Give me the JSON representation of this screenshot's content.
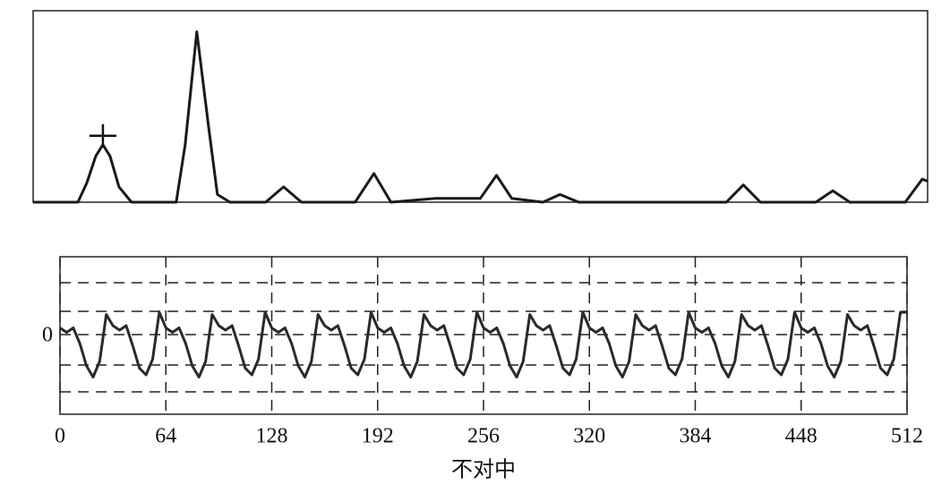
{
  "chart_data": [
    {
      "type": "line",
      "color": "#1a1a1a",
      "xlim": [
        0,
        100
      ],
      "ylim": [
        0,
        100
      ],
      "marker_point": 4,
      "x": [
        0,
        5,
        6,
        7,
        7.8,
        8.6,
        9.6,
        11,
        16,
        17,
        18.3,
        19.6,
        20.6,
        22,
        26,
        28,
        30,
        36,
        38.1,
        40,
        45,
        50,
        51.8,
        53.5,
        57,
        58.9,
        61,
        70,
        77.5,
        79.4,
        81.3,
        87.5,
        89.4,
        91.3,
        97.5,
        99.4,
        100
      ],
      "values": [
        0,
        0,
        10,
        24,
        30,
        24,
        8,
        0,
        0,
        30,
        89,
        40,
        4,
        0,
        0,
        8,
        0,
        0,
        15,
        0,
        2,
        2,
        14,
        2,
        0,
        4,
        0,
        0,
        0,
        9,
        0,
        0,
        6,
        0,
        0,
        12,
        11
      ]
    },
    {
      "type": "line",
      "color": "#2a2a2a",
      "x_label": "不对中",
      "xlim": [
        0,
        512
      ],
      "xticks": [
        0,
        64,
        128,
        192,
        256,
        320,
        384,
        448,
        512
      ],
      "ylim": [
        -1.78,
        1.74
      ],
      "yticks": [
        0
      ],
      "ygrid": [
        1.16,
        0.52,
        0,
        -0.68,
        -1.28
      ],
      "grid": true,
      "x": [
        0,
        4,
        8,
        12,
        16,
        20,
        24,
        28,
        32,
        36,
        40,
        44,
        48,
        52,
        56,
        60,
        64,
        68,
        72,
        76,
        80,
        84,
        88,
        92,
        96,
        100,
        104,
        108,
        112,
        116,
        120,
        124,
        128,
        132,
        136,
        140,
        144,
        148,
        152,
        156,
        160,
        164,
        168,
        172,
        176,
        180,
        184,
        188,
        192,
        196,
        200,
        204,
        208,
        212,
        216,
        220,
        224,
        228,
        232,
        236,
        240,
        244,
        248,
        252,
        256,
        260,
        264,
        268,
        272,
        276,
        280,
        284,
        288,
        292,
        296,
        300,
        304,
        308,
        312,
        316,
        320,
        324,
        328,
        332,
        336,
        340,
        344,
        348,
        352,
        356,
        360,
        364,
        368,
        372,
        376,
        380,
        384,
        388,
        392,
        396,
        400,
        404,
        408,
        412,
        416,
        420,
        424,
        428,
        432,
        436,
        440,
        444,
        448,
        452,
        456,
        460,
        464,
        468,
        472,
        476,
        480,
        484,
        488,
        492,
        496,
        500,
        504,
        508,
        512
      ],
      "values": [
        0.15,
        0.05,
        0.15,
        -0.2,
        -0.7,
        -0.95,
        -0.6,
        0.45,
        0.2,
        0.1,
        0.2,
        -0.25,
        -0.75,
        -0.9,
        -0.55,
        0.5,
        0.15,
        0.05,
        0.15,
        -0.2,
        -0.7,
        -0.95,
        -0.6,
        0.45,
        0.2,
        0.1,
        0.2,
        -0.25,
        -0.75,
        -0.9,
        -0.55,
        0.5,
        0.15,
        0.05,
        0.15,
        -0.2,
        -0.7,
        -0.95,
        -0.6,
        0.45,
        0.2,
        0.1,
        0.2,
        -0.25,
        -0.75,
        -0.9,
        -0.55,
        0.5,
        0.15,
        0.05,
        0.15,
        -0.2,
        -0.7,
        -0.95,
        -0.6,
        0.45,
        0.2,
        0.1,
        0.2,
        -0.25,
        -0.75,
        -0.9,
        -0.55,
        0.5,
        0.15,
        0.05,
        0.15,
        -0.2,
        -0.7,
        -0.95,
        -0.6,
        0.45,
        0.2,
        0.1,
        0.2,
        -0.25,
        -0.75,
        -0.9,
        -0.55,
        0.5,
        0.15,
        0.05,
        0.15,
        -0.2,
        -0.7,
        -0.95,
        -0.6,
        0.45,
        0.2,
        0.1,
        0.2,
        -0.25,
        -0.75,
        -0.9,
        -0.55,
        0.5,
        0.15,
        0.05,
        0.15,
        -0.2,
        -0.7,
        -0.95,
        -0.6,
        0.45,
        0.2,
        0.1,
        0.2,
        -0.25,
        -0.75,
        -0.9,
        -0.55,
        0.5,
        0.15,
        0.05,
        0.15,
        -0.2,
        -0.7,
        -0.95,
        -0.6,
        0.45,
        0.2,
        0.1,
        0.2,
        -0.25,
        -0.75,
        -0.9,
        -0.55,
        0.5,
        0.5
      ]
    }
  ]
}
